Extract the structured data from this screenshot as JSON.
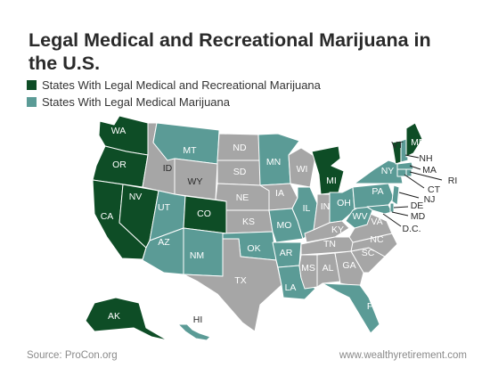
{
  "title": "Legal Medical and Recreational Marijuana in the U.S.",
  "legend": [
    {
      "label": "States With Legal Medical and Recreational Marijuana",
      "color": "#0e4d26"
    },
    {
      "label": "States With Legal Medical Marijuana",
      "color": "#5b9b96"
    }
  ],
  "colors": {
    "recreational": "#0e4d26",
    "medical": "#5b9b96",
    "none": "#a6a6a6"
  },
  "states": {
    "WA": "WA",
    "OR": "OR",
    "CA": "CA",
    "NV": "NV",
    "CO": "CO",
    "AK": "AK",
    "MI": "MI",
    "VT": "VT",
    "ME": "ME",
    "MT": "MT",
    "ID": "ID",
    "WY": "WY",
    "UT": "UT",
    "AZ": "AZ",
    "NM": "NM",
    "ND": "ND",
    "SD": "SD",
    "NE": "NE",
    "KS": "KS",
    "OK": "OK",
    "TX": "TX",
    "MN": "MN",
    "IA": "IA",
    "MO": "MO",
    "AR": "AR",
    "LA": "LA",
    "WI": "WI",
    "IL": "IL",
    "IN": "IN",
    "OH": "OH",
    "KY": "KY",
    "TN": "TN",
    "MS": "MS",
    "AL": "AL",
    "GA": "GA",
    "FL": "FL",
    "SC": "SC",
    "NC": "NC",
    "VA": "VA",
    "WV": "WV",
    "PA": "PA",
    "NY": "NY",
    "HI": "HI",
    "NH": "NH",
    "MA": "MA",
    "RI": "RI",
    "CT": "CT",
    "NJ": "NJ",
    "DE": "DE",
    "MD": "MD",
    "DC": "D.C."
  },
  "source": "Source: ProCon.org",
  "website": "www.wealthyretirement.com"
}
